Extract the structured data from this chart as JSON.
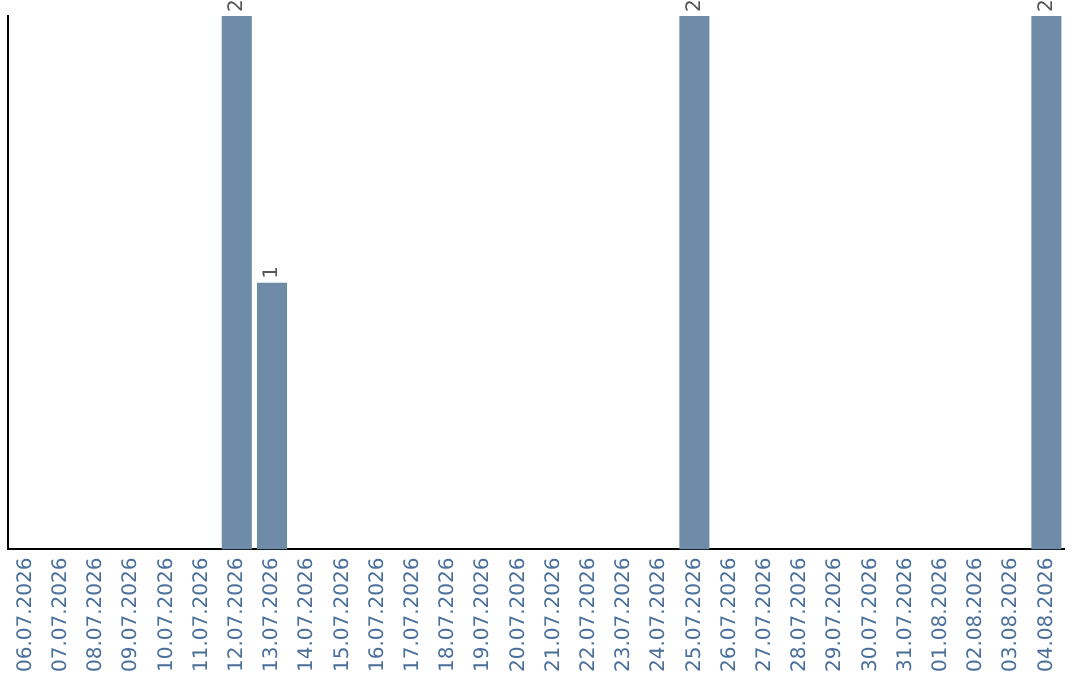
{
  "chart_data": {
    "type": "bar",
    "categories": [
      "06.07.2026",
      "07.07.2026",
      "08.07.2026",
      "09.07.2026",
      "10.07.2026",
      "11.07.2026",
      "12.07.2026",
      "13.07.2026",
      "14.07.2026",
      "15.07.2026",
      "16.07.2026",
      "17.07.2026",
      "18.07.2026",
      "19.07.2026",
      "20.07.2026",
      "21.07.2026",
      "22.07.2026",
      "23.07.2026",
      "24.07.2026",
      "25.07.2026",
      "26.07.2026",
      "27.07.2026",
      "28.07.2026",
      "29.07.2026",
      "30.07.2026",
      "31.07.2026",
      "01.08.2026",
      "02.08.2026",
      "03.08.2026",
      "04.08.2026"
    ],
    "values": [
      null,
      null,
      null,
      null,
      null,
      null,
      2,
      1,
      null,
      null,
      null,
      null,
      null,
      null,
      null,
      null,
      null,
      null,
      null,
      2,
      null,
      null,
      null,
      null,
      null,
      null,
      null,
      null,
      null,
      2
    ],
    "color": "#6e8ca8",
    "ylim": [
      0,
      2
    ],
    "tick_labels": "x",
    "grid": false,
    "data_labels": true
  }
}
